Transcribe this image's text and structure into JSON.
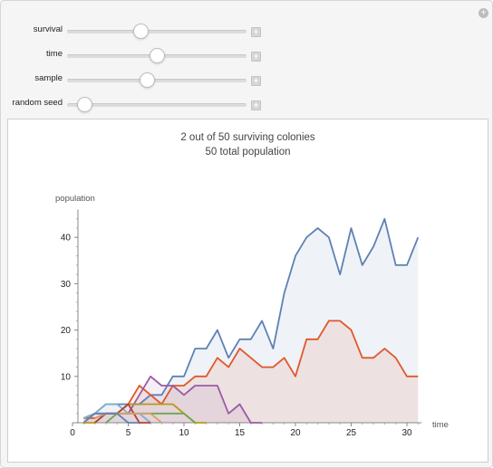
{
  "controls": [
    {
      "label": "survival",
      "value": 0.4
    },
    {
      "label": "time",
      "value": 0.5
    },
    {
      "label": "sample",
      "value": 0.44
    },
    {
      "label": "random seed",
      "value": 0.06
    }
  ],
  "colors": {
    "blue": "#5e81b5",
    "orange": "#e1572a",
    "purple": "#9b5aa6",
    "olive": "#b79a16",
    "green": "#6aa84f",
    "lightblue": "#7fb0cc",
    "darkred": "#b5413b",
    "tan": "#d8a267"
  },
  "icons": {
    "corner": "plus-circle-icon",
    "slider_plus": "plus-icon"
  },
  "plot": {
    "title_line1": "2 out of 50 surviving colonies",
    "title_line2": "50 total population"
  },
  "chart_data": {
    "type": "line",
    "title": "2 out of 50 surviving colonies\n50 total population",
    "xlabel": "time",
    "ylabel": "population",
    "xlim": [
      0,
      31
    ],
    "ylim": [
      0,
      46
    ],
    "x_ticks": [
      0,
      5,
      10,
      15,
      20,
      25,
      30
    ],
    "y_ticks": [
      10,
      20,
      30,
      40
    ],
    "filled": true,
    "series": [
      {
        "color": "#5e81b5",
        "fill": true,
        "x": [
          1,
          2,
          3,
          4,
          5,
          6,
          7,
          8,
          9,
          10,
          11,
          12,
          13,
          14,
          15,
          16,
          17,
          18,
          19,
          20,
          21,
          22,
          23,
          24,
          25,
          26,
          27,
          28,
          29,
          30,
          31
        ],
        "y": [
          1,
          2,
          4,
          4,
          4,
          4,
          6,
          6,
          10,
          10,
          16,
          16,
          20,
          14,
          18,
          18,
          22,
          16,
          28,
          36,
          40,
          42,
          40,
          32,
          42,
          34,
          38,
          44,
          34,
          34,
          40
        ]
      },
      {
        "color": "#e1572a",
        "fill": true,
        "x": [
          1,
          2,
          3,
          4,
          5,
          6,
          7,
          8,
          9,
          10,
          11,
          12,
          13,
          14,
          15,
          16,
          17,
          18,
          19,
          20,
          21,
          22,
          23,
          24,
          25,
          26,
          27,
          28,
          29,
          30,
          31
        ],
        "y": [
          1,
          1,
          2,
          2,
          4,
          8,
          6,
          4,
          8,
          8,
          10,
          10,
          14,
          12,
          16,
          14,
          12,
          12,
          14,
          10,
          18,
          18,
          22,
          22,
          20,
          14,
          14,
          16,
          14,
          10,
          10
        ]
      },
      {
        "color": "#9b5aa6",
        "fill": true,
        "x": [
          1,
          2,
          3,
          4,
          5,
          6,
          7,
          8,
          9,
          10,
          11,
          12,
          13,
          14,
          15,
          16,
          17
        ],
        "y": [
          1,
          2,
          2,
          2,
          2,
          6,
          10,
          8,
          8,
          6,
          8,
          8,
          8,
          2,
          4,
          0,
          0
        ]
      },
      {
        "color": "#b79a16",
        "fill": false,
        "x": [
          1,
          2,
          3,
          4,
          5,
          6,
          7,
          8,
          9,
          10,
          11,
          12
        ],
        "y": [
          0,
          0,
          2,
          2,
          4,
          4,
          4,
          4,
          4,
          2,
          0,
          0
        ]
      },
      {
        "color": "#6aa84f",
        "fill": false,
        "x": [
          3,
          4,
          5,
          6,
          7,
          8,
          9,
          10,
          11
        ],
        "y": [
          0,
          2,
          2,
          2,
          2,
          2,
          2,
          2,
          0
        ]
      },
      {
        "color": "#7fb0cc",
        "fill": false,
        "x": [
          1,
          2,
          3,
          4,
          5,
          6,
          7
        ],
        "y": [
          1,
          2,
          4,
          4,
          2,
          2,
          0
        ]
      },
      {
        "color": "#b5413b",
        "fill": false,
        "x": [
          2,
          3,
          4,
          5,
          6,
          7
        ],
        "y": [
          0,
          2,
          2,
          4,
          0,
          0
        ]
      },
      {
        "color": "#d8a267",
        "fill": false,
        "x": [
          2,
          3,
          4,
          5,
          6,
          7,
          8
        ],
        "y": [
          1,
          2,
          2,
          2,
          2,
          2,
          0
        ]
      },
      {
        "color": "#5e81b5",
        "fill": false,
        "x": [
          1,
          2,
          3,
          4,
          5,
          6
        ],
        "y": [
          0,
          2,
          2,
          2,
          0,
          0
        ]
      }
    ]
  }
}
